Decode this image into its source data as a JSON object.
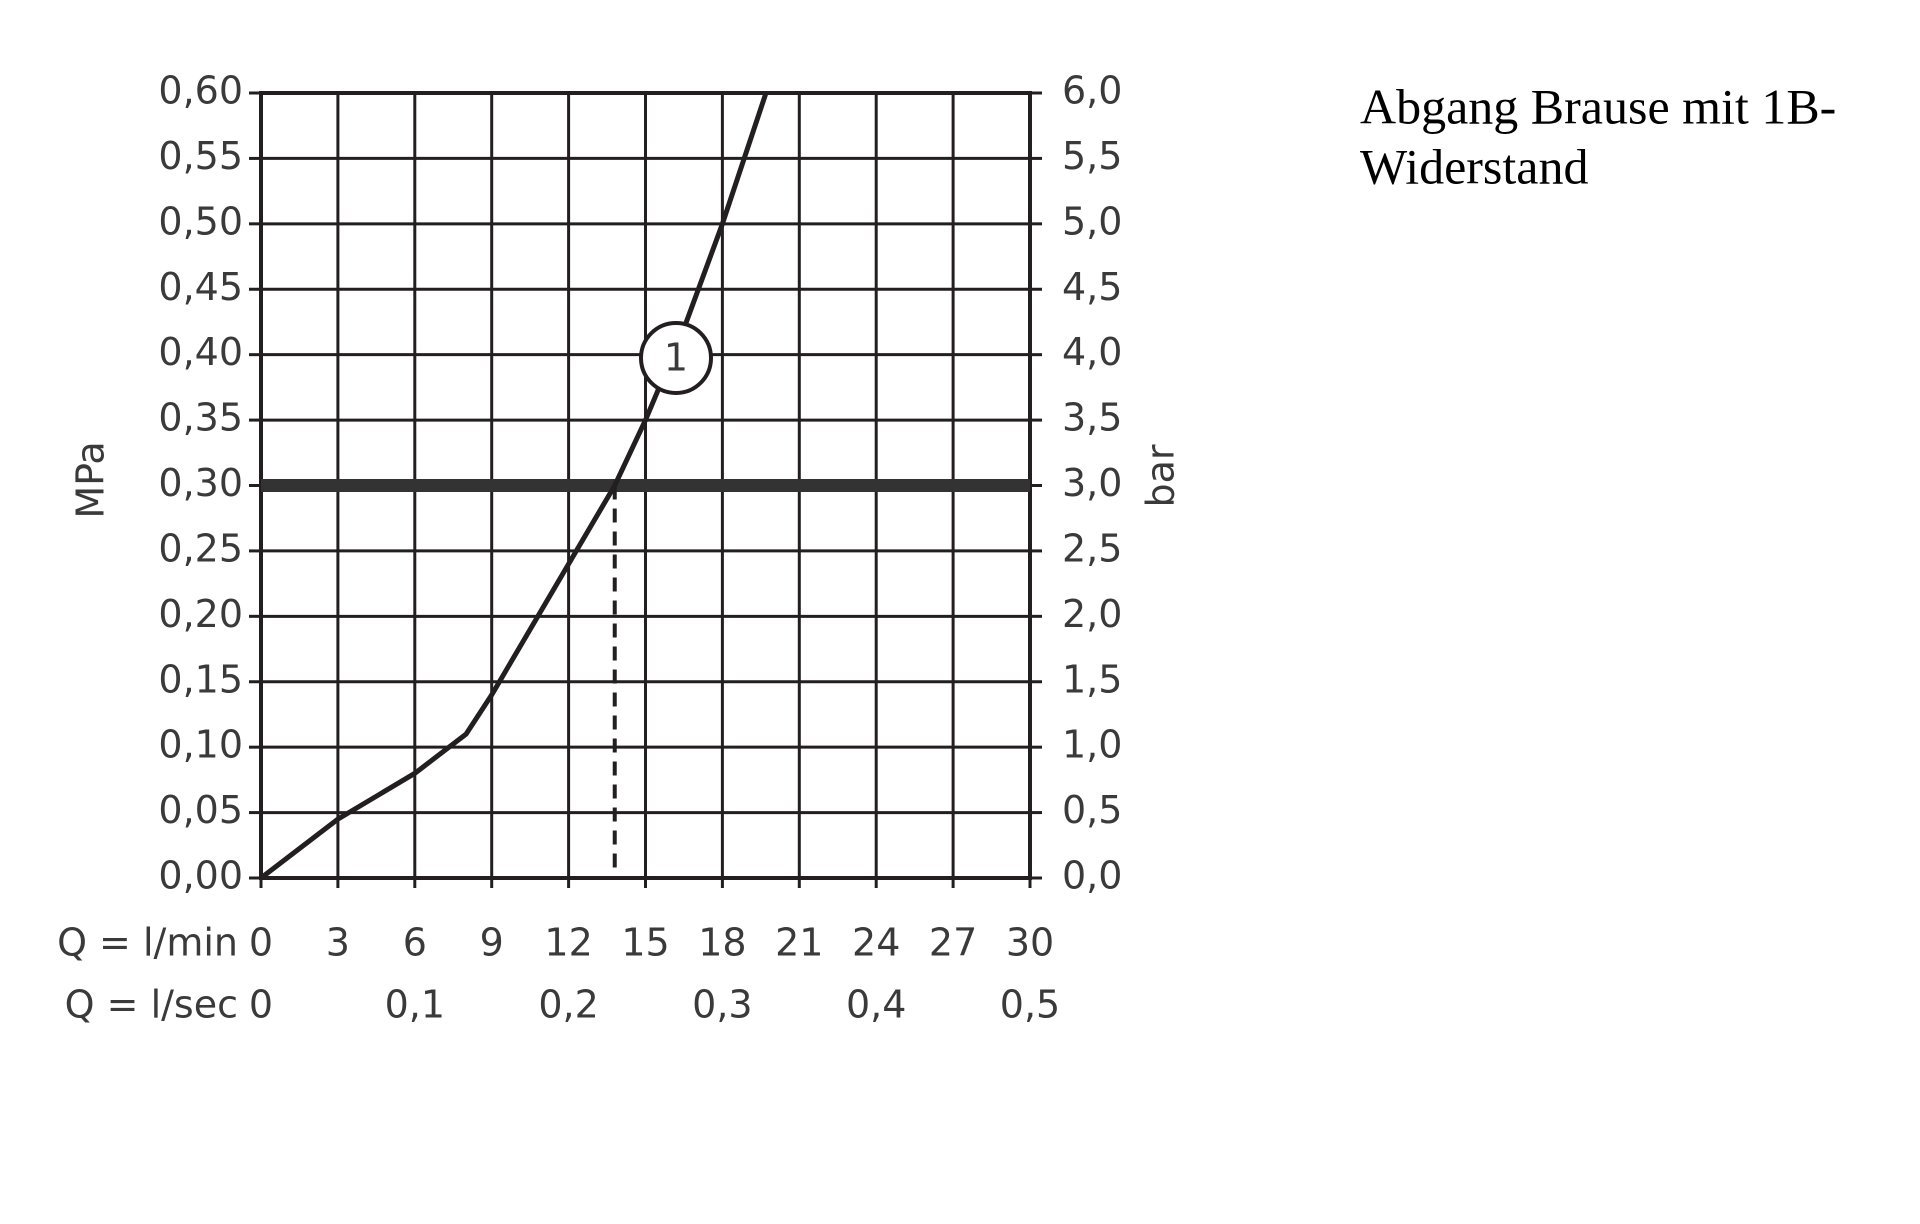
{
  "chart_data": {
    "type": "line",
    "title_lines": [
      "Abgang Brause mit 1B-",
      "Widerstand"
    ],
    "y_label": "MPa",
    "y2_label": "bar",
    "x_label": "Q = l/min",
    "x2_label": "Q = l/sec",
    "x": [
      0,
      3,
      6,
      8,
      9,
      12,
      13.8,
      15,
      16.5,
      18,
      19.7
    ],
    "series": [
      {
        "name": "1",
        "color": "#231f20",
        "values": [
          0,
          0.045,
          0.08,
          0.11,
          0.14,
          0.24,
          0.3,
          0.35,
          0.42,
          0.5,
          0.6
        ]
      }
    ],
    "xlim": [
      0,
      30
    ],
    "xticks": [
      0,
      3,
      6,
      9,
      12,
      15,
      18,
      21,
      24,
      27,
      30
    ],
    "x2lim": [
      0,
      0.5
    ],
    "x2ticks": [
      0,
      {
        "value": 0.1,
        "label": "0,1"
      },
      {
        "value": 0.2,
        "label": "0,2"
      },
      {
        "value": 0.3,
        "label": "0,3"
      },
      {
        "value": 0.4,
        "label": "0,4"
      },
      {
        "value": 0.5,
        "label": "0,5"
      }
    ],
    "ylim": [
      0,
      0.6
    ],
    "yticks": [
      {
        "value": 0,
        "label": "0,00"
      },
      {
        "value": 0.05,
        "label": "0,05"
      },
      {
        "value": 0.1,
        "label": "0,10"
      },
      {
        "value": 0.15,
        "label": "0,15"
      },
      {
        "value": 0.2,
        "label": "0,20"
      },
      {
        "value": 0.25,
        "label": "0,25"
      },
      {
        "value": 0.3,
        "label": "0,30"
      },
      {
        "value": 0.35,
        "label": "0,35"
      },
      {
        "value": 0.4,
        "label": "0,40"
      },
      {
        "value": 0.45,
        "label": "0,45"
      },
      {
        "value": 0.5,
        "label": "0,50"
      },
      {
        "value": 0.55,
        "label": "0,55"
      },
      {
        "value": 0.6,
        "label": "0,60"
      }
    ],
    "y2lim": [
      0,
      6
    ],
    "y2ticks": [
      {
        "value": 0,
        "label": "0,0"
      },
      {
        "value": 0.5,
        "label": "0,5"
      },
      {
        "value": 1,
        "label": "1,0"
      },
      {
        "value": 1.5,
        "label": "1,5"
      },
      {
        "value": 2,
        "label": "2,0"
      },
      {
        "value": 2.5,
        "label": "2,5"
      },
      {
        "value": 3,
        "label": "3,0"
      },
      {
        "value": 3.5,
        "label": "3,5"
      },
      {
        "value": 4,
        "label": "4,0"
      },
      {
        "value": 4.5,
        "label": "4,5"
      },
      {
        "value": 5,
        "label": "5,0"
      },
      {
        "value": 5.5,
        "label": "5,5"
      },
      {
        "value": 6,
        "label": "6,0"
      }
    ],
    "reference_y": 0.3,
    "reference_x": 13.8,
    "grid": true
  }
}
